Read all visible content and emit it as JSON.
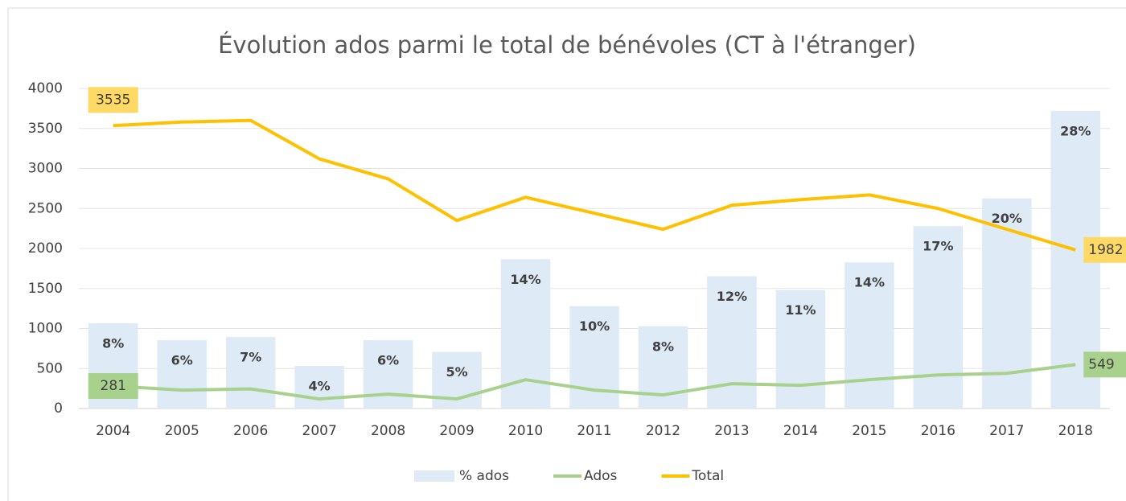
{
  "chart_data": {
    "type": "combo",
    "title": "Évolution ados parmi le total de bénévoles (CT à l'étranger)",
    "categories": [
      "2004",
      "2005",
      "2006",
      "2007",
      "2008",
      "2009",
      "2010",
      "2011",
      "2012",
      "2013",
      "2014",
      "2015",
      "2016",
      "2017",
      "2018"
    ],
    "ylim": [
      0,
      4000
    ],
    "yticks": [
      0,
      500,
      1000,
      1500,
      2000,
      2500,
      3000,
      3500,
      4000
    ],
    "y2lim": [
      0,
      30
    ],
    "grid": true,
    "legend": "bottom",
    "series": [
      {
        "name": "% ados",
        "type": "bar",
        "axis": "y2",
        "color": "#deebf7",
        "values": [
          8.0,
          6.4,
          6.7,
          4.0,
          6.4,
          5.3,
          14.0,
          9.6,
          7.7,
          12.4,
          11.1,
          13.7,
          17.1,
          19.7,
          27.9
        ],
        "value_labels": [
          "8%",
          "6%",
          "7%",
          "4%",
          "6%",
          "5%",
          "14%",
          "10%",
          "8%",
          "12%",
          "11%",
          "14%",
          "17%",
          "20%",
          "28%"
        ]
      },
      {
        "name": "Ados",
        "type": "line",
        "color": "#a9d18e",
        "label_color": "#a9d18e",
        "values": [
          281,
          230,
          245,
          120,
          180,
          120,
          360,
          230,
          170,
          310,
          290,
          360,
          420,
          440,
          549
        ]
      },
      {
        "name": "Total",
        "type": "line",
        "color": "#ffc000",
        "label_color": "#ffd966",
        "values": [
          3535,
          3580,
          3600,
          3120,
          2870,
          2350,
          2640,
          2440,
          2240,
          2540,
          2610,
          2670,
          2500,
          2240,
          1982
        ]
      }
    ]
  }
}
